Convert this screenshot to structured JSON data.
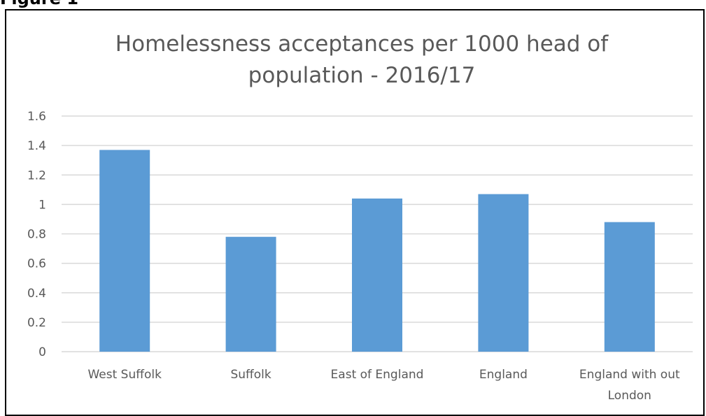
{
  "figure_label": "Figure 1",
  "chart_data": {
    "type": "bar",
    "title_lines": [
      "Homelessness  acceptances per 1000 head of",
      "population - 2016/17"
    ],
    "categories": [
      [
        "West Suffolk"
      ],
      [
        "Suffolk"
      ],
      [
        "East of England"
      ],
      [
        "England"
      ],
      [
        "England with out",
        "London"
      ]
    ],
    "values": [
      1.37,
      0.78,
      1.04,
      1.07,
      0.88
    ],
    "ylim": [
      0,
      1.6
    ],
    "yticks": [
      0,
      0.2,
      0.4,
      0.6,
      0.8,
      1,
      1.2,
      1.4,
      1.6
    ],
    "ytick_labels": [
      "0",
      "0.2",
      "0.4",
      "0.6",
      "0.8",
      "1",
      "1.2",
      "1.4",
      "1.6"
    ],
    "grid": true,
    "legend": "none",
    "colors": {
      "bar": "#5b9bd5",
      "grid": "#d9d9d9",
      "text": "#595959"
    }
  }
}
